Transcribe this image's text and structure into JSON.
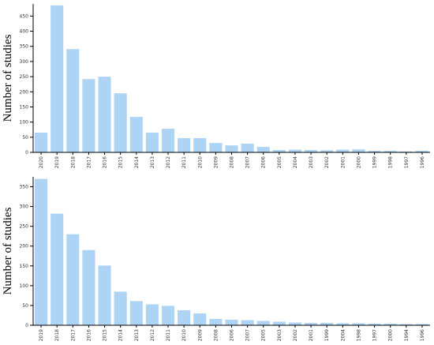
{
  "chart_data": [
    {
      "type": "bar",
      "y_label": "Number of studies",
      "color": "#aed4f5",
      "categories": [
        "2020",
        "2019",
        "2018",
        "2017",
        "2016",
        "2015",
        "2014",
        "2013",
        "2012",
        "2011",
        "2010",
        "2009",
        "2008",
        "2007",
        "2006",
        "2005",
        "2004",
        "2003",
        "2002",
        "2001",
        "2000",
        "1999",
        "1998",
        "1997",
        "1996"
      ],
      "values": [
        65,
        485,
        341,
        242,
        250,
        195,
        117,
        65,
        78,
        47,
        47,
        31,
        23,
        29,
        18,
        8,
        9,
        8,
        7,
        9,
        10,
        5,
        5,
        3,
        5
      ],
      "ylim": [
        0,
        490
      ],
      "yticks": [
        0,
        50,
        100,
        150,
        200,
        250,
        300,
        350,
        400,
        450
      ]
    },
    {
      "type": "bar",
      "y_label": "Number of studies",
      "color": "#aed4f5",
      "categories": [
        "2019",
        "2018",
        "2017",
        "2016",
        "2015",
        "2014",
        "2013",
        "2012",
        "2011",
        "2010",
        "2009",
        "2008",
        "2006",
        "2007",
        "2005",
        "2003",
        "2002",
        "2001",
        "1999",
        "2004",
        "1998",
        "1997",
        "2000",
        "1994",
        "1996"
      ],
      "values": [
        370,
        282,
        230,
        190,
        151,
        85,
        61,
        53,
        49,
        38,
        30,
        16,
        14,
        13,
        11,
        9,
        7,
        6,
        6,
        5,
        5,
        4,
        4,
        3,
        3
      ],
      "ylim": [
        0,
        375
      ],
      "yticks": [
        0,
        50,
        100,
        150,
        200,
        250,
        300,
        350
      ]
    }
  ]
}
